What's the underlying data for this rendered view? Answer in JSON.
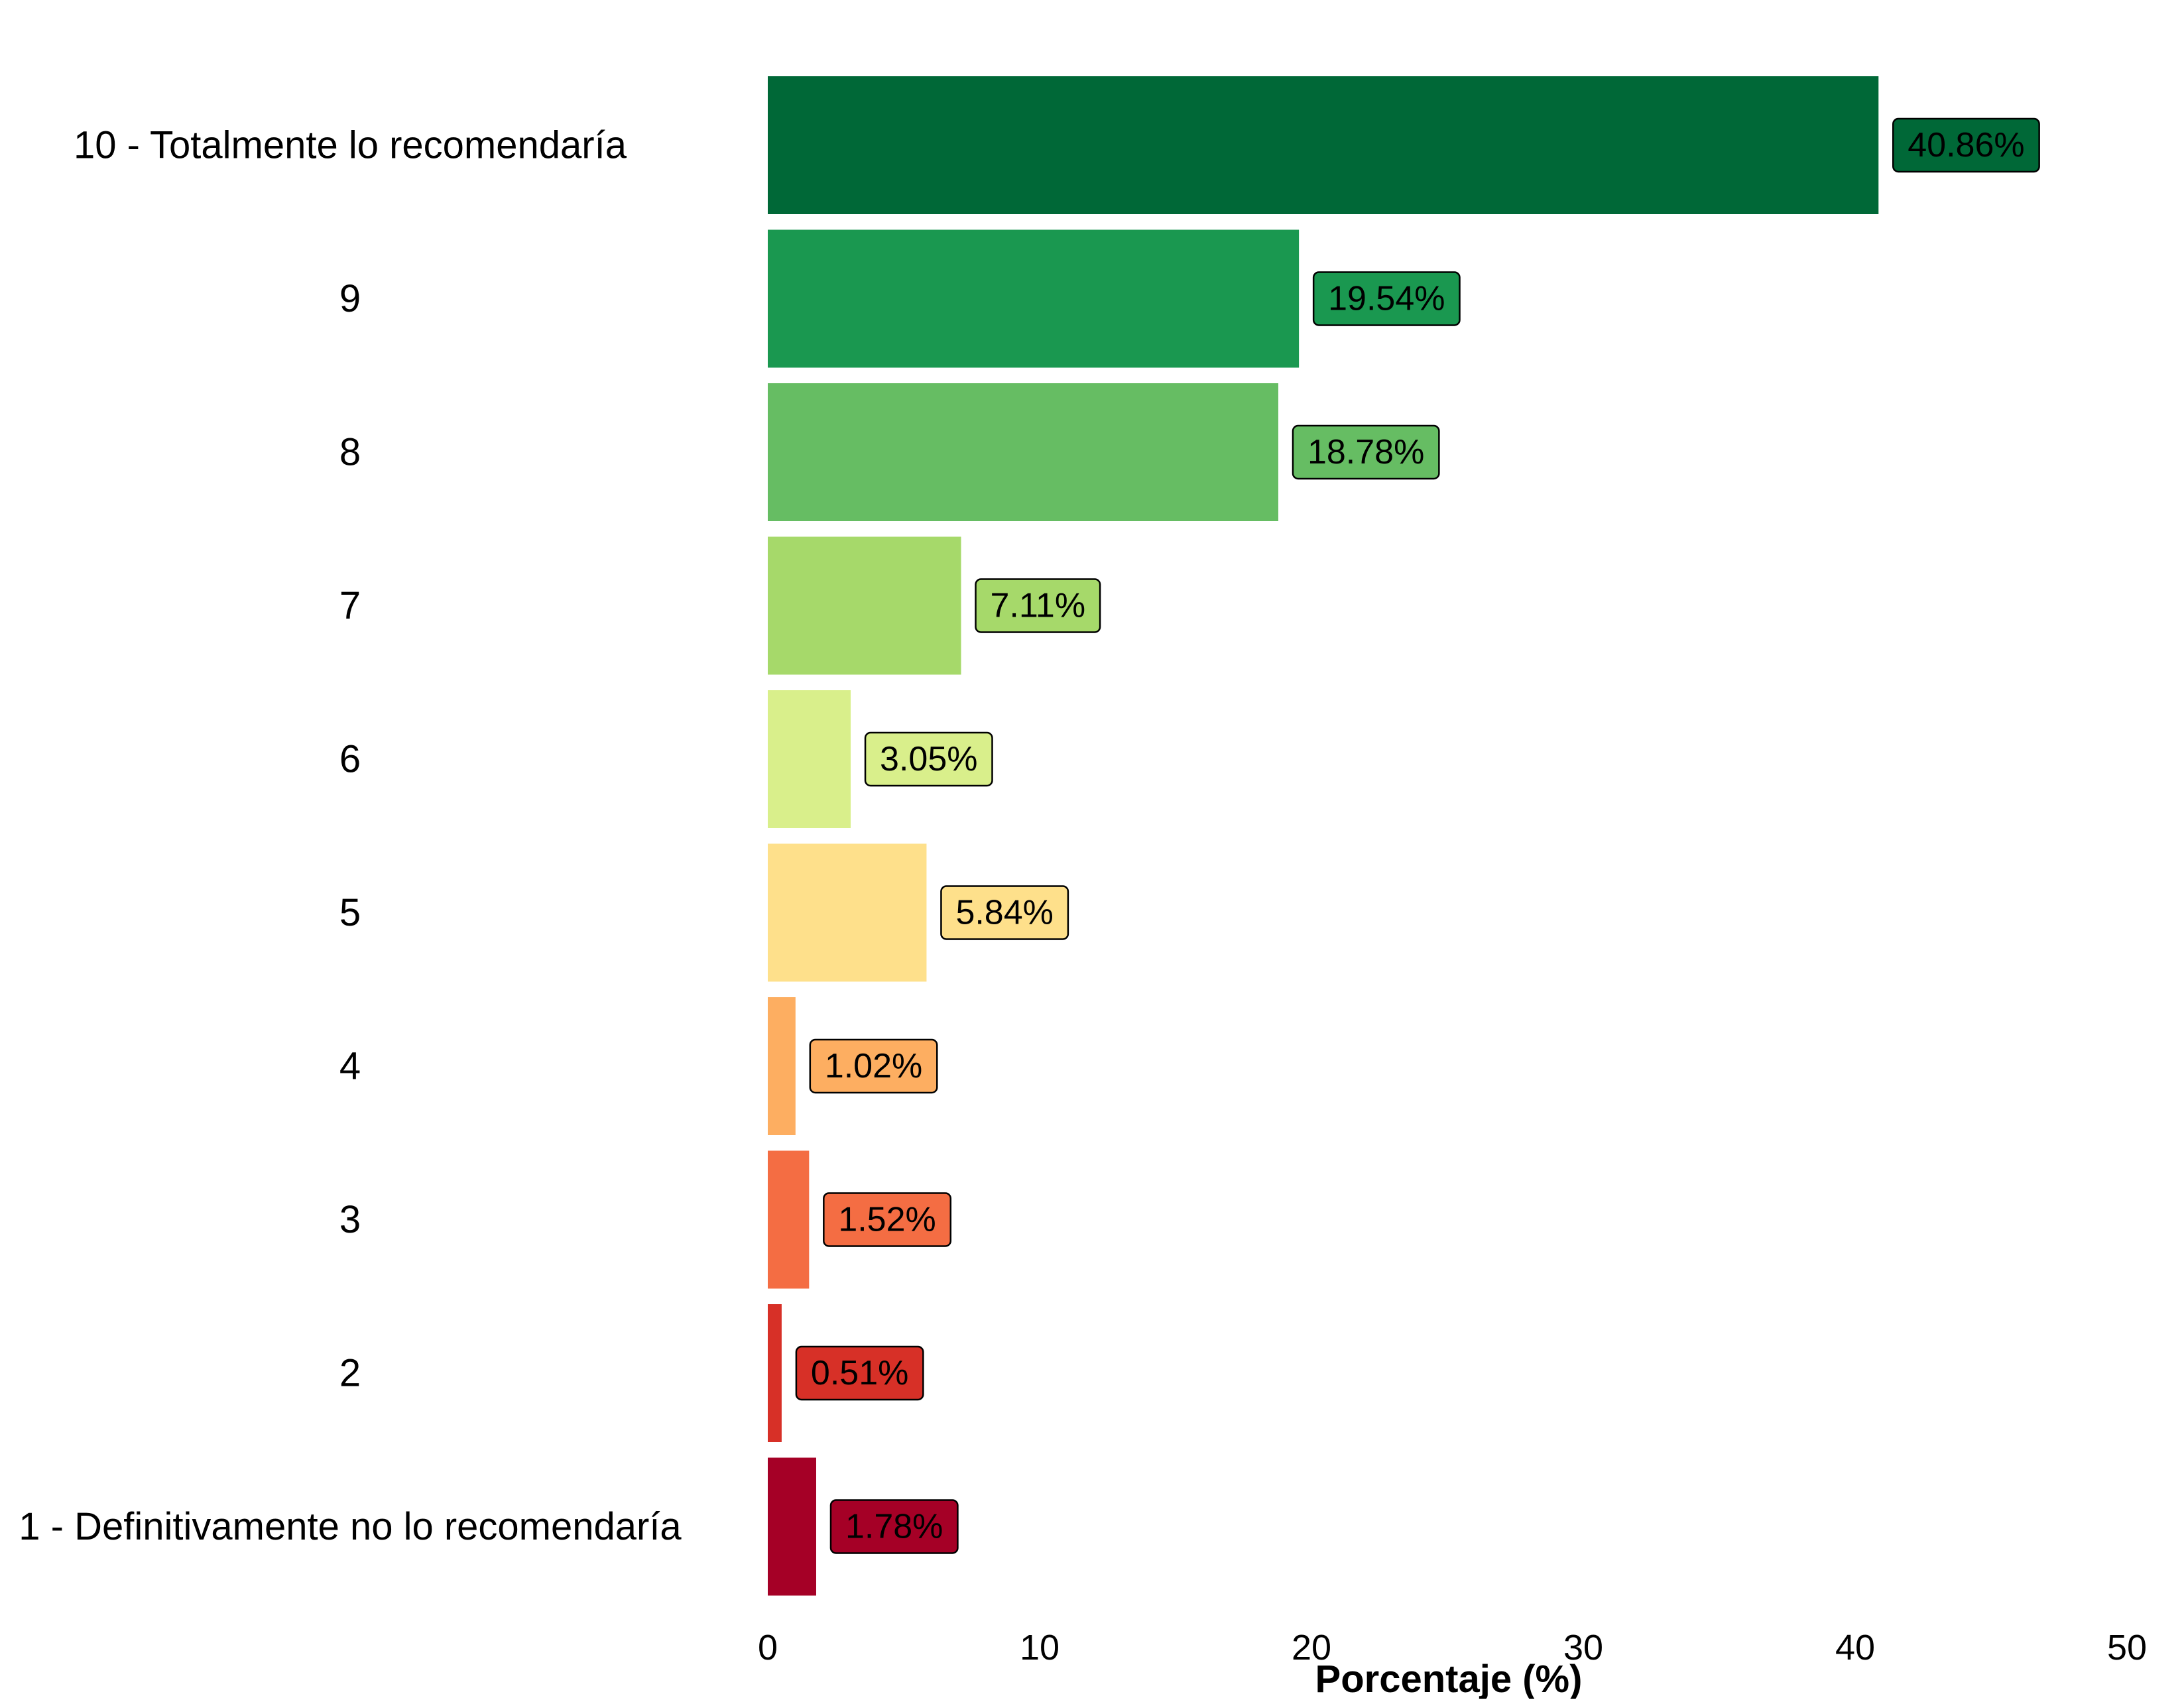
{
  "chart_data": {
    "type": "bar",
    "orientation": "horizontal",
    "categories": [
      "10 - Totalmente lo recomendaría",
      "9",
      "8",
      "7",
      "6",
      "5",
      "4",
      "3",
      "2",
      "1 - Definitivamente no lo recomendaría"
    ],
    "values": [
      40.86,
      19.54,
      18.78,
      7.11,
      3.05,
      5.84,
      1.02,
      1.52,
      0.51,
      1.78
    ],
    "data_labels": [
      "40.86%",
      "19.54%",
      "18.78%",
      "7.11%",
      "3.05%",
      "5.84%",
      "1.02%",
      "1.52%",
      "0.51%",
      "1.78%"
    ],
    "colors": [
      "#006837",
      "#1a9850",
      "#66bd63",
      "#a6d96a",
      "#d9ef8b",
      "#fee08b",
      "#fdae61",
      "#f46d43",
      "#d73027",
      "#a50026"
    ],
    "xlabel": "Porcentaje (%)",
    "ylabel": "",
    "title": "",
    "xlim": [
      0,
      50
    ],
    "x_ticks": [
      0,
      10,
      20,
      30,
      40,
      50
    ],
    "x_tick_labels": [
      "0",
      "10",
      "20",
      "30",
      "40",
      "50"
    ],
    "grid": false,
    "legend": "none"
  }
}
